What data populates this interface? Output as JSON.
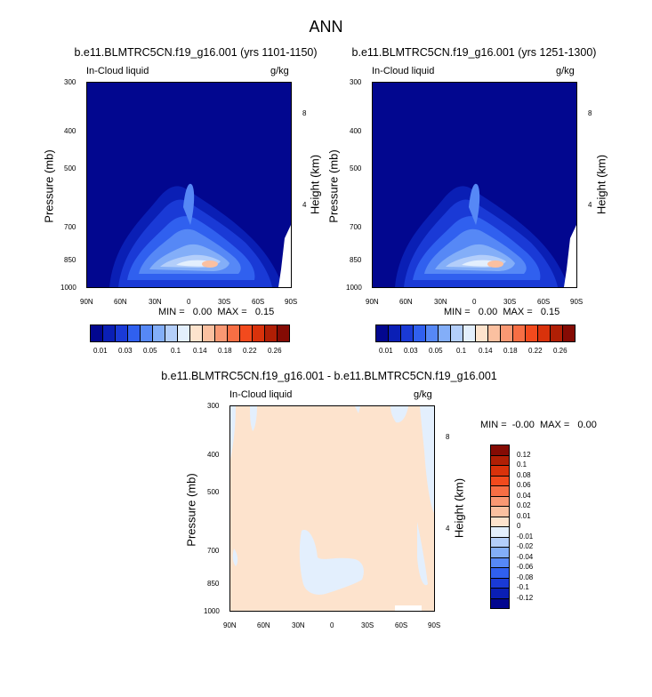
{
  "main_title": "ANN",
  "panels": [
    {
      "title": "b.e11.BLMTRC5CN.f19_g16.001 (yrs 1101-1150)",
      "left_label": "In-Cloud liquid",
      "right_label": "g/kg",
      "stats": "MIN =   0.00  MAX =   0.15"
    },
    {
      "title": "b.e11.BLMTRC5CN.f19_g16.001 (yrs 1251-1300)",
      "left_label": "In-Cloud liquid",
      "right_label": "g/kg",
      "stats": "MIN =   0.00  MAX =   0.15"
    },
    {
      "title": "b.e11.BLMTRC5CN.f19_g16.001 - b.e11.BLMTRC5CN.f19_g16.001",
      "left_label": "In-Cloud liquid",
      "right_label": "g/kg",
      "stats": "MIN =  -0.00  MAX =   0.00"
    }
  ],
  "axes": {
    "x_ticks": [
      "90N",
      "60N",
      "30N",
      "0",
      "30S",
      "60S",
      "90S"
    ],
    "y_ticks": [
      "300",
      "400",
      "500",
      "700",
      "850",
      "1000"
    ],
    "y_label": "Pressure (mb)",
    "y2_ticks": [
      "8",
      "4"
    ],
    "y2_label": "Height (km)"
  },
  "colorbar_abs": {
    "labels": [
      "0.01",
      "0.03",
      "0.05",
      "0.1",
      "0.14",
      "0.18",
      "0.22",
      "0.26"
    ],
    "colors": [
      "#02078f",
      "#0a1fb5",
      "#1a3ad6",
      "#3060ef",
      "#5688f6",
      "#83aef8",
      "#b3cefa",
      "#e3effd",
      "#fde3cd",
      "#fbc0a0",
      "#f99873",
      "#f76e44",
      "#f24a1d",
      "#d9320b",
      "#b01f05",
      "#850b04"
    ]
  },
  "colorbar_diff": {
    "labels": [
      "0.12",
      "0.1",
      "0.08",
      "0.06",
      "0.04",
      "0.02",
      "0.01",
      "0",
      "-0.01",
      "-0.02",
      "-0.04",
      "-0.06",
      "-0.08",
      "-0.1",
      "-0.12"
    ],
    "colors": [
      "#850b04",
      "#b01f05",
      "#d9320b",
      "#f24a1d",
      "#f76e44",
      "#f99873",
      "#fbc0a0",
      "#fde3cd",
      "#e3effd",
      "#b3cefa",
      "#83aef8",
      "#5688f6",
      "#3060ef",
      "#1a3ad6",
      "#0a1fb5",
      "#02078f"
    ]
  },
  "chart_data": [
    {
      "type": "heatmap",
      "title": "b.e11.BLMTRC5CN.f19_g16.001 (yrs 1101-1150)",
      "variable": "In-Cloud liquid",
      "units": "g/kg",
      "x": [
        "90N",
        "60N",
        "30N",
        "0",
        "30S",
        "60S",
        "90S"
      ],
      "y_pressure_mb": [
        300,
        400,
        500,
        700,
        850,
        1000
      ],
      "min": 0.0,
      "max": 0.15
    },
    {
      "type": "heatmap",
      "title": "b.e11.BLMTRC5CN.f19_g16.001 (yrs 1251-1300)",
      "variable": "In-Cloud liquid",
      "units": "g/kg",
      "x": [
        "90N",
        "60N",
        "30N",
        "0",
        "30S",
        "60S",
        "90S"
      ],
      "y_pressure_mb": [
        300,
        400,
        500,
        700,
        850,
        1000
      ],
      "min": 0.0,
      "max": 0.15
    },
    {
      "type": "heatmap",
      "title": "b.e11.BLMTRC5CN.f19_g16.001 - b.e11.BLMTRC5CN.f19_g16.001",
      "variable": "In-Cloud liquid",
      "units": "g/kg",
      "x": [
        "90N",
        "60N",
        "30N",
        "0",
        "30S",
        "60S",
        "90S"
      ],
      "y_pressure_mb": [
        300,
        400,
        500,
        700,
        850,
        1000
      ],
      "min": -0.0,
      "max": 0.0
    }
  ]
}
